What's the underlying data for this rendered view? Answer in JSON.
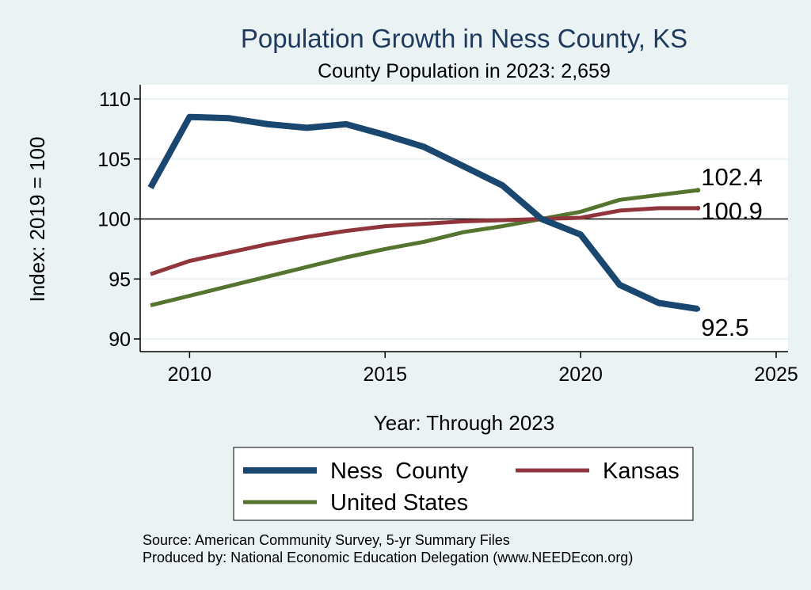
{
  "chart_data": {
    "type": "line",
    "title": "Population Growth in Ness County, KS",
    "subtitle": "County Population in 2023: 2,659",
    "xlabel": "Year: Through 2023",
    "ylabel": "Index: 2019 = 100",
    "xlim": [
      2009,
      2025
    ],
    "ylim": [
      90,
      110
    ],
    "xticks": [
      2010,
      2015,
      2020,
      2025
    ],
    "yticks": [
      90,
      95,
      100,
      105,
      110
    ],
    "reference_line": 100,
    "x": [
      2009,
      2010,
      2011,
      2012,
      2013,
      2014,
      2015,
      2016,
      2017,
      2018,
      2019,
      2020,
      2021,
      2022,
      2023
    ],
    "series": [
      {
        "name": "Ness  County",
        "color": "#1a476f",
        "values": [
          102.6,
          108.5,
          108.4,
          107.9,
          107.6,
          107.9,
          107.0,
          106.0,
          104.4,
          102.8,
          100.0,
          98.7,
          94.5,
          93.0,
          92.5
        ],
        "end_label": "92.5"
      },
      {
        "name": "Kansas",
        "color": "#90353b",
        "values": [
          95.4,
          96.5,
          97.2,
          97.9,
          98.5,
          99.0,
          99.4,
          99.6,
          99.8,
          99.9,
          100.0,
          100.1,
          100.7,
          100.9,
          100.9
        ],
        "end_label": "100.9"
      },
      {
        "name": "United States",
        "color": "#55752f",
        "values": [
          92.8,
          93.6,
          94.4,
          95.2,
          96.0,
          96.8,
          97.5,
          98.1,
          98.9,
          99.4,
          100.0,
          100.6,
          101.6,
          102.0,
          102.4
        ],
        "end_label": "102.4"
      }
    ],
    "legend": {
      "position": "bottom",
      "order": [
        "Ness  County",
        "Kansas",
        "United States"
      ]
    },
    "source_note": "Source: American Community Survey, 5-yr Summary Files",
    "produced_note": "Produced by: National Economic Education Delegation (www.NEEDEcon.org)"
  }
}
